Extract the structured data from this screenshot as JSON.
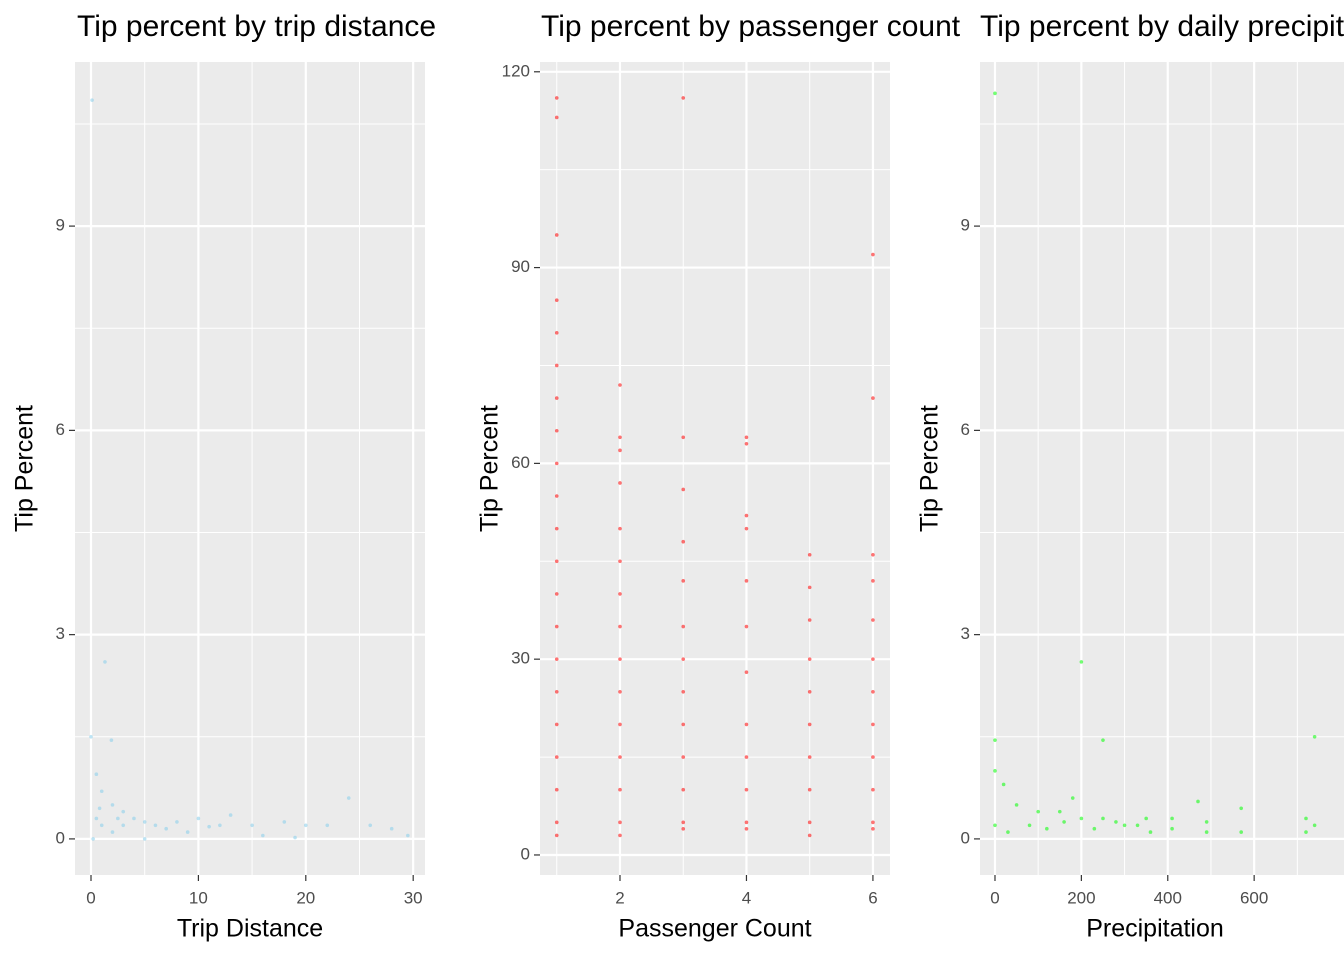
{
  "chart_data": [
    {
      "type": "scatter",
      "title": "Tip percent by trip distance",
      "xlabel": "Trip Distance",
      "ylabel": "Tip Percent",
      "color": "#87ceeb",
      "grid": true,
      "xlim": [
        -1.49,
        31.1
      ],
      "ylim": [
        -0.53,
        11.41
      ],
      "xticks": [
        0,
        10,
        20,
        30
      ],
      "yticks": [
        0,
        3,
        6,
        9
      ],
      "xminor": [
        5,
        15,
        25
      ],
      "yminor": [
        1.5,
        4.5,
        7.5,
        10.5
      ],
      "x": [
        0.1,
        1.3,
        1.9,
        0,
        24,
        29.5,
        0.5,
        1,
        2,
        3,
        4,
        5,
        6,
        8,
        10,
        12,
        15,
        18,
        20,
        22,
        26,
        28,
        0.5,
        1,
        2,
        3,
        0.2,
        5,
        9,
        13,
        16,
        19,
        0.8,
        2.5,
        7,
        11
      ],
      "y": [
        10.85,
        2.6,
        1.45,
        1.5,
        0.6,
        0.05,
        0.95,
        0.7,
        0.5,
        0.4,
        0.3,
        0.25,
        0.2,
        0.25,
        0.3,
        0.2,
        0.2,
        0.25,
        0.2,
        0.2,
        0.2,
        0.15,
        0.3,
        0.2,
        0.1,
        0.2,
        0,
        0,
        0.1,
        0.35,
        0.05,
        0.02,
        0.45,
        0.3,
        0.15,
        0.18
      ]
    },
    {
      "type": "scatter",
      "title": "Tip percent by passenger count",
      "xlabel": "Passenger Count",
      "ylabel": "Tip Percent",
      "color": "#ff0000",
      "grid": true,
      "xlim": [
        0.735,
        6.27
      ],
      "ylim": [
        -3.07,
        121.5
      ],
      "xticks": [
        2,
        4,
        6
      ],
      "yticks": [
        0,
        30,
        60,
        90,
        120
      ],
      "xminor": [
        1,
        3,
        5
      ],
      "yminor": [
        15,
        45,
        75,
        105
      ],
      "x": [
        1,
        1,
        1,
        1,
        1,
        1,
        1,
        1,
        1,
        1,
        1,
        1,
        1,
        1,
        1,
        1,
        1,
        1,
        1,
        1,
        1,
        2,
        2,
        2,
        2,
        2,
        2,
        2,
        2,
        2,
        2,
        2,
        2,
        2,
        2,
        2,
        3,
        3,
        3,
        3,
        3,
        3,
        3,
        3,
        3,
        3,
        3,
        3,
        3,
        4,
        4,
        4,
        4,
        4,
        4,
        4,
        4,
        4,
        4,
        4,
        4,
        5,
        5,
        5,
        5,
        5,
        5,
        5,
        5,
        5,
        5,
        6,
        6,
        6,
        6,
        6,
        6,
        6,
        6,
        6,
        6,
        6,
        6
      ],
      "y": [
        116,
        113,
        95,
        85,
        80,
        75,
        70,
        65,
        60,
        55,
        50,
        45,
        40,
        35,
        30,
        25,
        20,
        15,
        10,
        5,
        3,
        72,
        64,
        62,
        57,
        50,
        45,
        40,
        35,
        30,
        25,
        20,
        15,
        10,
        5,
        3,
        116,
        64,
        56,
        48,
        42,
        35,
        30,
        25,
        20,
        15,
        10,
        5,
        4,
        64,
        63,
        52,
        50,
        42,
        35,
        28,
        20,
        15,
        10,
        5,
        4,
        46,
        41,
        36,
        30,
        25,
        20,
        15,
        10,
        5,
        3,
        92,
        70,
        46,
        42,
        36,
        30,
        25,
        20,
        15,
        10,
        5,
        4
      ]
    },
    {
      "type": "scatter",
      "title": "Tip percent by daily precipitation",
      "xlabel": "Precipitation",
      "ylabel": "Tip Percent",
      "color": "#00ff00",
      "grid": true,
      "xlim": [
        -34.7,
        808
      ],
      "ylim": [
        -0.53,
        11.41
      ],
      "xticks": [
        0,
        200,
        400,
        600
      ],
      "yticks": [
        0,
        3,
        6,
        9
      ],
      "xminor": [
        100,
        300,
        500,
        700
      ],
      "yminor": [
        1.5,
        4.5,
        7.5,
        10.5
      ],
      "x": [
        0,
        200,
        250,
        0,
        740,
        0,
        20,
        50,
        100,
        150,
        180,
        200,
        250,
        300,
        350,
        410,
        470,
        490,
        570,
        570,
        720,
        740,
        0,
        30,
        80,
        120,
        160,
        230,
        280,
        330,
        360,
        410,
        490,
        720
      ],
      "y": [
        10.95,
        2.6,
        1.45,
        1.45,
        1.5,
        1.0,
        0.8,
        0.5,
        0.4,
        0.4,
        0.6,
        0.3,
        0.3,
        0.2,
        0.3,
        0.3,
        0.55,
        0.25,
        0.45,
        0.1,
        0.3,
        0.2,
        0.2,
        0.1,
        0.2,
        0.15,
        0.25,
        0.15,
        0.25,
        0.2,
        0.1,
        0.15,
        0.1,
        0.1
      ]
    }
  ]
}
